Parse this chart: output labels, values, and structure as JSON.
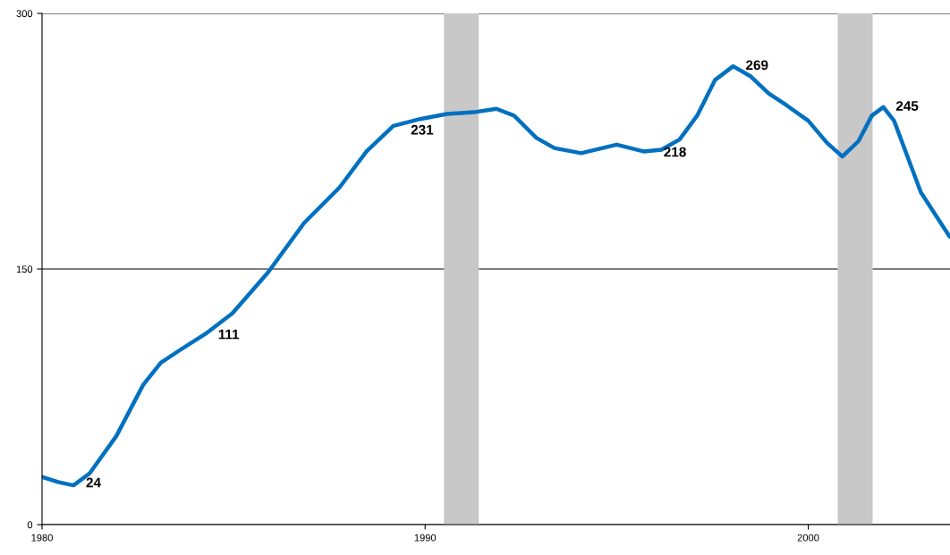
{
  "chart_data": {
    "type": "line",
    "x": [
      1980,
      1980.42,
      1980.82,
      1981.24,
      1981.94,
      1982.64,
      1983.1,
      1983.57,
      1984.27,
      1984.97,
      1985.9,
      1986.84,
      1987.77,
      1988.47,
      1989.17,
      1989.87,
      1990.57,
      1991.27,
      1991.86,
      1992.32,
      1992.9,
      1993.37,
      1994.07,
      1995.0,
      1995.7,
      1996.17,
      1996.64,
      1997.1,
      1997.57,
      1998.04,
      1998.5,
      1998.97,
      1999.44,
      2000,
      2000.49,
      2000.89,
      2001.31,
      2001.66,
      2001.96,
      2002.24,
      2002.94,
      2003.69
    ],
    "series": [
      {
        "color": "#0070c0",
        "values": [
          28,
          25,
          23,
          30,
          52,
          82,
          95,
          102,
          112,
          124,
          148,
          177,
          198,
          219,
          234,
          238,
          241,
          242,
          244,
          240,
          227,
          221,
          218,
          223,
          219,
          220,
          226,
          240,
          261,
          269,
          263,
          253,
          246,
          237,
          224,
          216,
          225,
          240,
          245,
          237,
          195,
          169
        ]
      }
    ],
    "xlim": [
      1980,
      2003.7
    ],
    "xticks": [
      1980,
      1990,
      2000
    ],
    "ylim": [
      0,
      300
    ],
    "yticks": [
      0,
      150,
      300
    ],
    "grid": "y",
    "bands": [
      {
        "axis": "x",
        "from": 1990.49,
        "to": 1991.4,
        "color": "#c8c8c8"
      },
      {
        "axis": "x",
        "from": 2000.77,
        "to": 2001.68,
        "color": "#c8c8c8"
      }
    ],
    "annotations": [
      {
        "text": "24",
        "x": 1980.82,
        "y": 24
      },
      {
        "text": "111",
        "x": 1984.27,
        "y": 111
      },
      {
        "text": "231",
        "x": 1989.3,
        "y": 231
      },
      {
        "text": "218",
        "x": 1995.9,
        "y": 218
      },
      {
        "text": "269",
        "x": 1998.04,
        "y": 269
      },
      {
        "text": "245",
        "x": 2001.96,
        "y": 245
      }
    ]
  }
}
